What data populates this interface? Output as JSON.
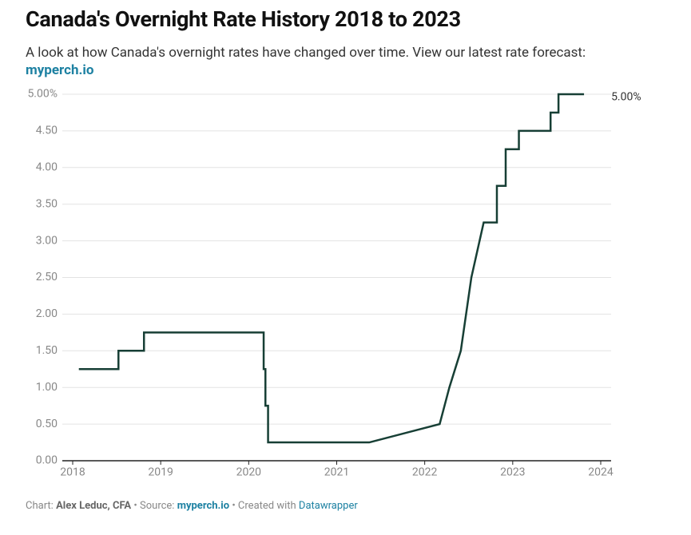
{
  "chart_data": {
    "type": "line",
    "title": "Canada's Overnight Rate History 2018 to 2023",
    "subtitle": "A look at how Canada's overnight rates have changed over time. View our latest rate forecast:",
    "subtitle_link": "myperch.io",
    "footer": {
      "chart_prefix": "Chart:",
      "author": "Alex Leduc, CFA",
      "source_prefix": "• Source:",
      "source": "myperch.io",
      "created_prefix": "• Created with",
      "tool": "Datawrapper"
    },
    "x": [
      2018.07,
      2018.52,
      2018.52,
      2018.81,
      2018.81,
      2020.17,
      2020.17,
      2020.19,
      2020.19,
      2020.22,
      2020.22,
      2021.37,
      2022.17,
      2022.28,
      2022.41,
      2022.53,
      2022.67,
      2022.82,
      2022.82,
      2022.92,
      2022.92,
      2023.07,
      2023.07,
      2023.43,
      2023.43,
      2023.52,
      2023.52,
      2023.81
    ],
    "series": [
      {
        "name": "Overnight rate",
        "color": "#173f35",
        "values": [
          1.25,
          1.25,
          1.5,
          1.5,
          1.75,
          1.75,
          1.25,
          1.25,
          0.75,
          0.75,
          0.25,
          0.25,
          0.5,
          1.0,
          1.5,
          2.5,
          3.25,
          3.25,
          3.75,
          3.75,
          4.25,
          4.25,
          4.5,
          4.5,
          4.75,
          4.75,
          5.0,
          5.0
        ],
        "value_labels": [
          null,
          null,
          null,
          null,
          null,
          null,
          null,
          null,
          null,
          null,
          null,
          null,
          null,
          null,
          null,
          null,
          null,
          null,
          null,
          null,
          null,
          null,
          null,
          null,
          null,
          null,
          null,
          "5.00%"
        ]
      }
    ],
    "xlim": [
      2018,
      2024
    ],
    "xticks": [
      2018,
      2019,
      2020,
      2021,
      2022,
      2023,
      2024
    ],
    "ylim": [
      0,
      5
    ],
    "yticks": [
      {
        "value": 0,
        "label": "0.00"
      },
      {
        "value": 0.5,
        "label": "0.50"
      },
      {
        "value": 1,
        "label": "1.00"
      },
      {
        "value": 1.5,
        "label": "1.50"
      },
      {
        "value": 2,
        "label": "2.00"
      },
      {
        "value": 2.5,
        "label": "2.50"
      },
      {
        "value": 3,
        "label": "3.00"
      },
      {
        "value": 3.5,
        "label": "3.50"
      },
      {
        "value": 4,
        "label": "4.00"
      },
      {
        "value": 4.5,
        "label": "4.50"
      },
      {
        "value": 5,
        "label": "5.00%"
      }
    ],
    "grid": true
  }
}
